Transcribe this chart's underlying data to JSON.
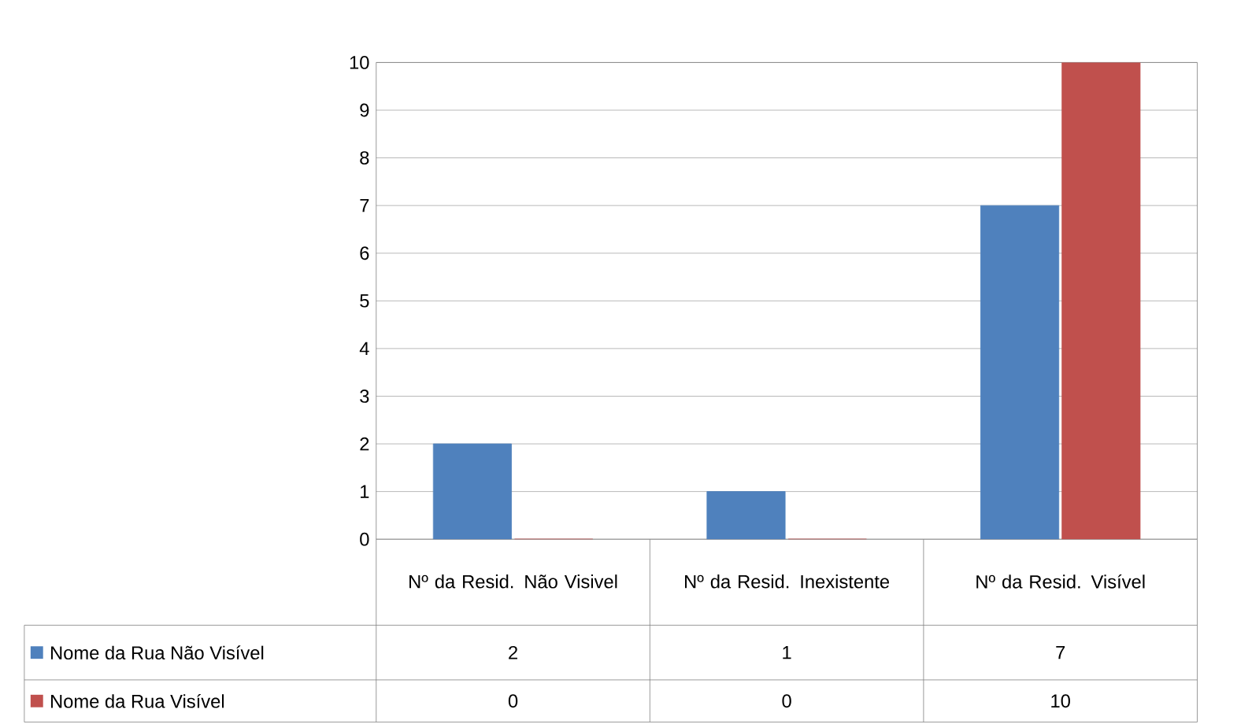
{
  "chart_data": {
    "type": "bar",
    "categories": [
      "Nº da Resid. Não Visivel",
      "Nº da Resid. Inexistente",
      "Nº da Resid. Visível"
    ],
    "series": [
      {
        "name": "Nome da Rua Não Visível",
        "color": "#4f81bd",
        "values": [
          2,
          1,
          7
        ]
      },
      {
        "name": "Nome da Rua Visível",
        "color": "#c0504d",
        "values": [
          0,
          0,
          10
        ]
      }
    ],
    "ylim": [
      0,
      10
    ],
    "yticks": [
      0,
      1,
      2,
      3,
      4,
      5,
      6,
      7,
      8,
      9,
      10
    ],
    "grid": "y",
    "legend": "bottom left",
    "data_labels": true
  }
}
